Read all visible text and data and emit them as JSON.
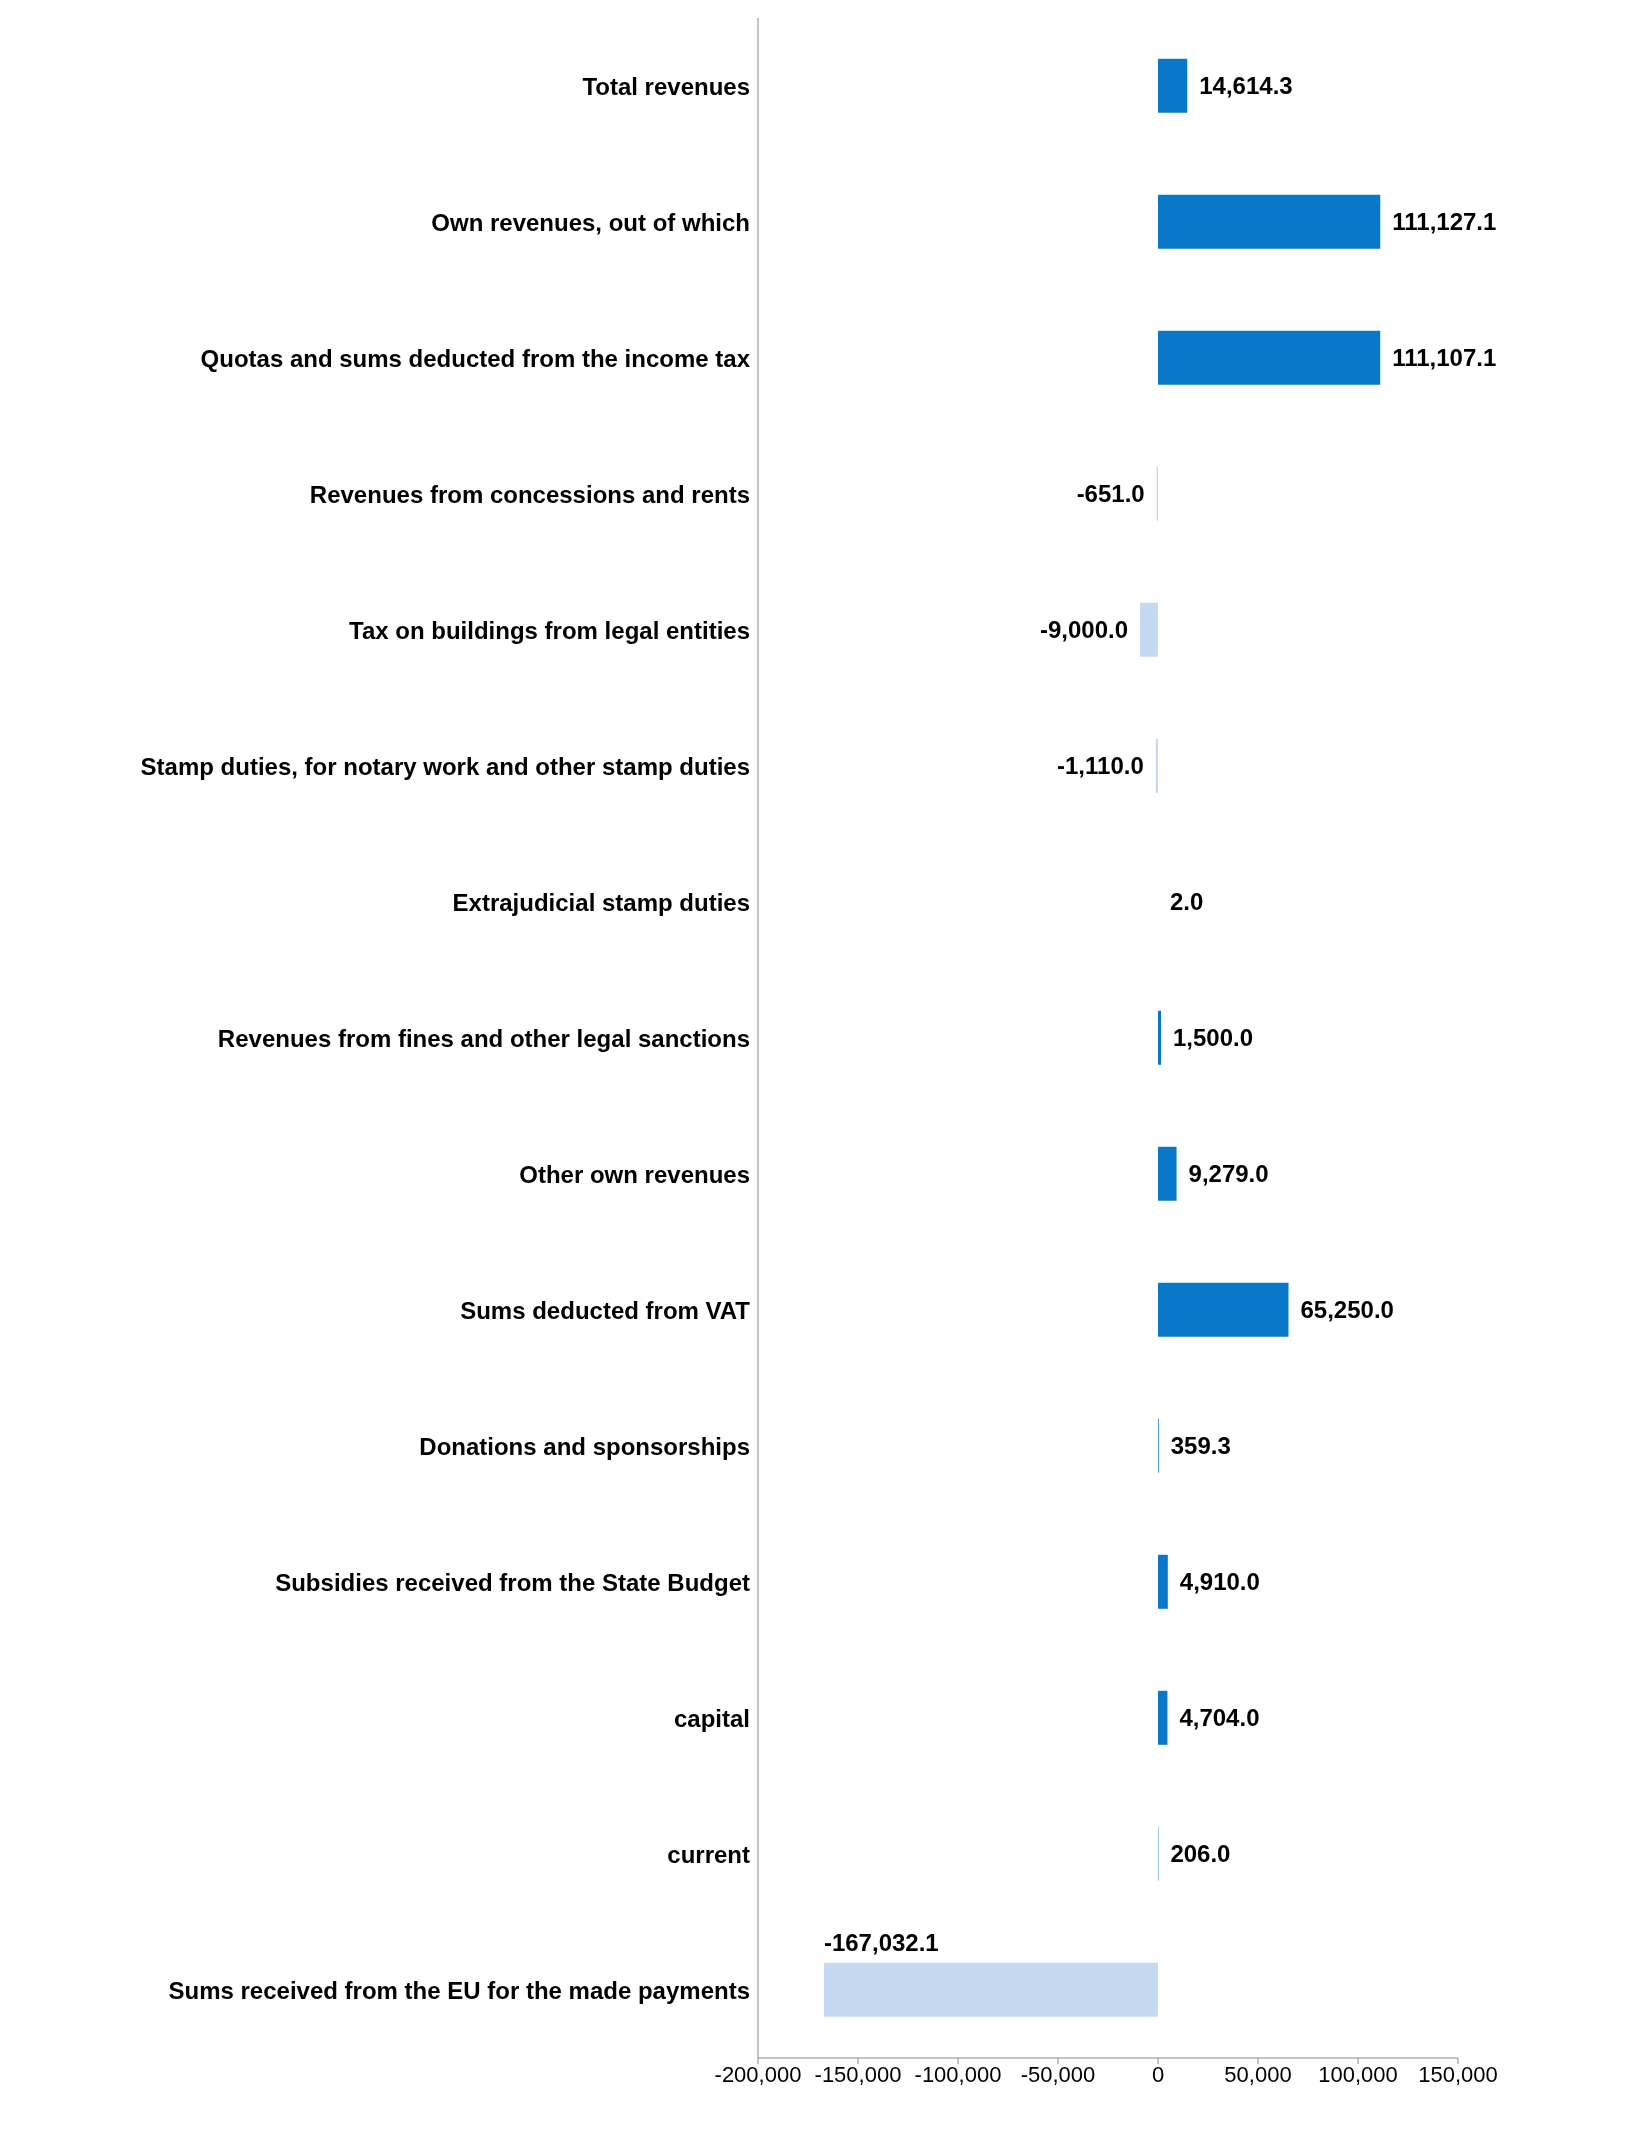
{
  "chart_data": {
    "type": "bar",
    "orientation": "horizontal",
    "categories": [
      "Total revenues",
      "Own revenues, out of which",
      "Quotas and sums deducted from the income tax",
      "Revenues from concessions and rents",
      "Tax on buildings from legal entities",
      "Stamp duties, for notary work and other stamp duties",
      "Extrajudicial stamp duties",
      "Revenues from fines and other legal sanctions",
      "Other own revenues",
      "Sums deducted from VAT",
      "Donations and sponsorships",
      "Subsidies received from the State Budget",
      "capital",
      "current",
      "Sums received from the EU for the made payments"
    ],
    "values": [
      14614.3,
      111127.1,
      111107.1,
      -651.0,
      -9000.0,
      -1110.0,
      2.0,
      1500.0,
      9279.0,
      65250.0,
      359.3,
      4910.0,
      4704.0,
      206.0,
      -167032.1
    ],
    "colors": [
      "#0a78c8",
      "#0a78c8",
      "#0a78c8",
      "#c5d9f0",
      "#c5d9f0",
      "#c5d9f0",
      "#0a78c8",
      "#0a78c8",
      "#0a78c8",
      "#0a78c8",
      "#0a78c8",
      "#0a78c8",
      "#0a78c8",
      "#0a78c8",
      "#c5d9f0"
    ],
    "xlim": [
      -200000,
      150000
    ],
    "xticks": [
      {
        "value": -200000,
        "label": "-200,000"
      },
      {
        "value": -150000,
        "label": "-150,000"
      },
      {
        "value": -100000,
        "label": "-100,000"
      },
      {
        "value": -50000,
        "label": "-50,000"
      },
      0,
      {
        "value": 50000,
        "label": "50,000"
      },
      {
        "value": 100000,
        "label": "100,000"
      },
      {
        "value": 150000,
        "label": "150,000"
      }
    ],
    "value_labels": [
      "14,614.3",
      "111,127.1",
      "111,107.1",
      "-651.0",
      "-9,000.0",
      "-1,110.0",
      "2.0",
      "1,500.0",
      "9,279.0",
      "65,250.0",
      "359.3",
      "4,910.0",
      "4,704.0",
      "206.0",
      "-167,032.1"
    ]
  }
}
